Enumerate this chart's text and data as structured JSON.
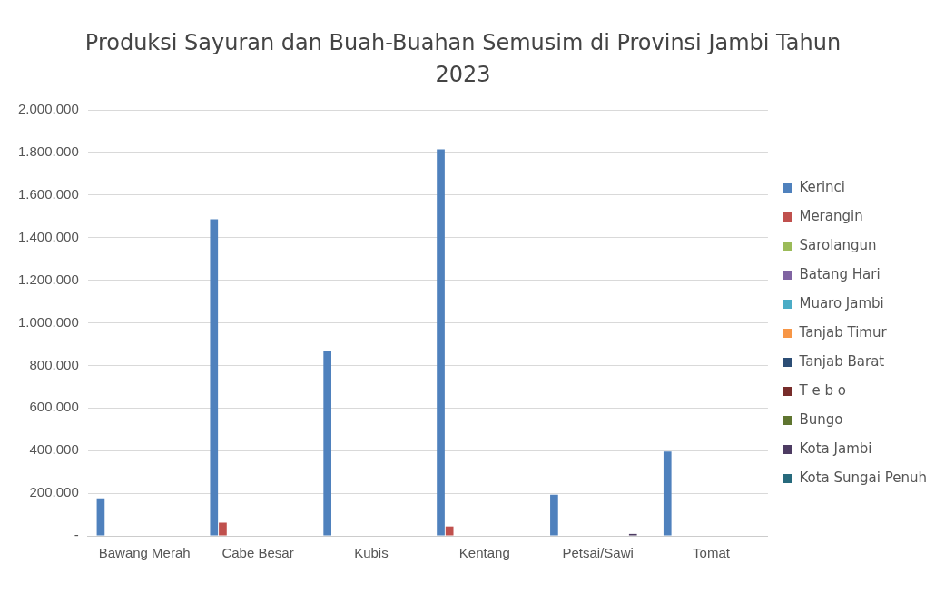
{
  "chart_data": {
    "type": "bar",
    "title": "Produksi Sayuran dan Buah-Buahan Semusim di Provinsi Jambi Tahun 2023",
    "categories": [
      "Bawang Merah",
      "Cabe Besar",
      "Kubis",
      "Kentang",
      "Petsai/Sawi",
      "Tomat"
    ],
    "series": [
      {
        "name": "Kerinci",
        "color": "#4f81bd",
        "values": [
          176000,
          1486000,
          870000,
          1815000,
          193000,
          396000
        ]
      },
      {
        "name": "Merangin",
        "color": "#c0504d",
        "values": [
          0,
          62000,
          0,
          44000,
          0,
          0
        ]
      },
      {
        "name": "Sarolangun",
        "color": "#9bbb59",
        "values": [
          0,
          0,
          0,
          0,
          0,
          0
        ]
      },
      {
        "name": "Batang Hari",
        "color": "#8064a2",
        "values": [
          0,
          0,
          0,
          0,
          0,
          0
        ]
      },
      {
        "name": "Muaro Jambi",
        "color": "#4bacc6",
        "values": [
          0,
          0,
          0,
          0,
          0,
          0
        ]
      },
      {
        "name": "Tanjab Timur",
        "color": "#f79646",
        "values": [
          0,
          0,
          0,
          0,
          0,
          0
        ]
      },
      {
        "name": "Tanjab Barat",
        "color": "#2c4d75",
        "values": [
          0,
          0,
          0,
          0,
          0,
          0
        ]
      },
      {
        "name": "T e b o",
        "color": "#772c2a",
        "values": [
          0,
          0,
          0,
          0,
          0,
          0
        ]
      },
      {
        "name": "Bungo",
        "color": "#5f7530",
        "values": [
          0,
          0,
          0,
          0,
          0,
          0
        ]
      },
      {
        "name": "Kota Jambi",
        "color": "#4d3b62",
        "values": [
          0,
          0,
          0,
          0,
          9000,
          0
        ]
      },
      {
        "name": "Kota Sungai Penuh",
        "color": "#276a7c",
        "values": [
          0,
          0,
          0,
          0,
          0,
          0
        ]
      }
    ],
    "ylim": [
      0,
      2000000
    ],
    "yticks": [
      {
        "value": 0,
        "label": "-"
      },
      {
        "value": 200000,
        "label": "200.000"
      },
      {
        "value": 400000,
        "label": "400.000"
      },
      {
        "value": 600000,
        "label": "600.000"
      },
      {
        "value": 800000,
        "label": "800.000"
      },
      {
        "value": 1000000,
        "label": "1.000.000"
      },
      {
        "value": 1200000,
        "label": "1.200.000"
      },
      {
        "value": 1400000,
        "label": "1.400.000"
      },
      {
        "value": 1600000,
        "label": "1.600.000"
      },
      {
        "value": 1800000,
        "label": "1.800.000"
      },
      {
        "value": 2000000,
        "label": "2.000.000"
      }
    ],
    "grid": "y",
    "legend": "right"
  }
}
